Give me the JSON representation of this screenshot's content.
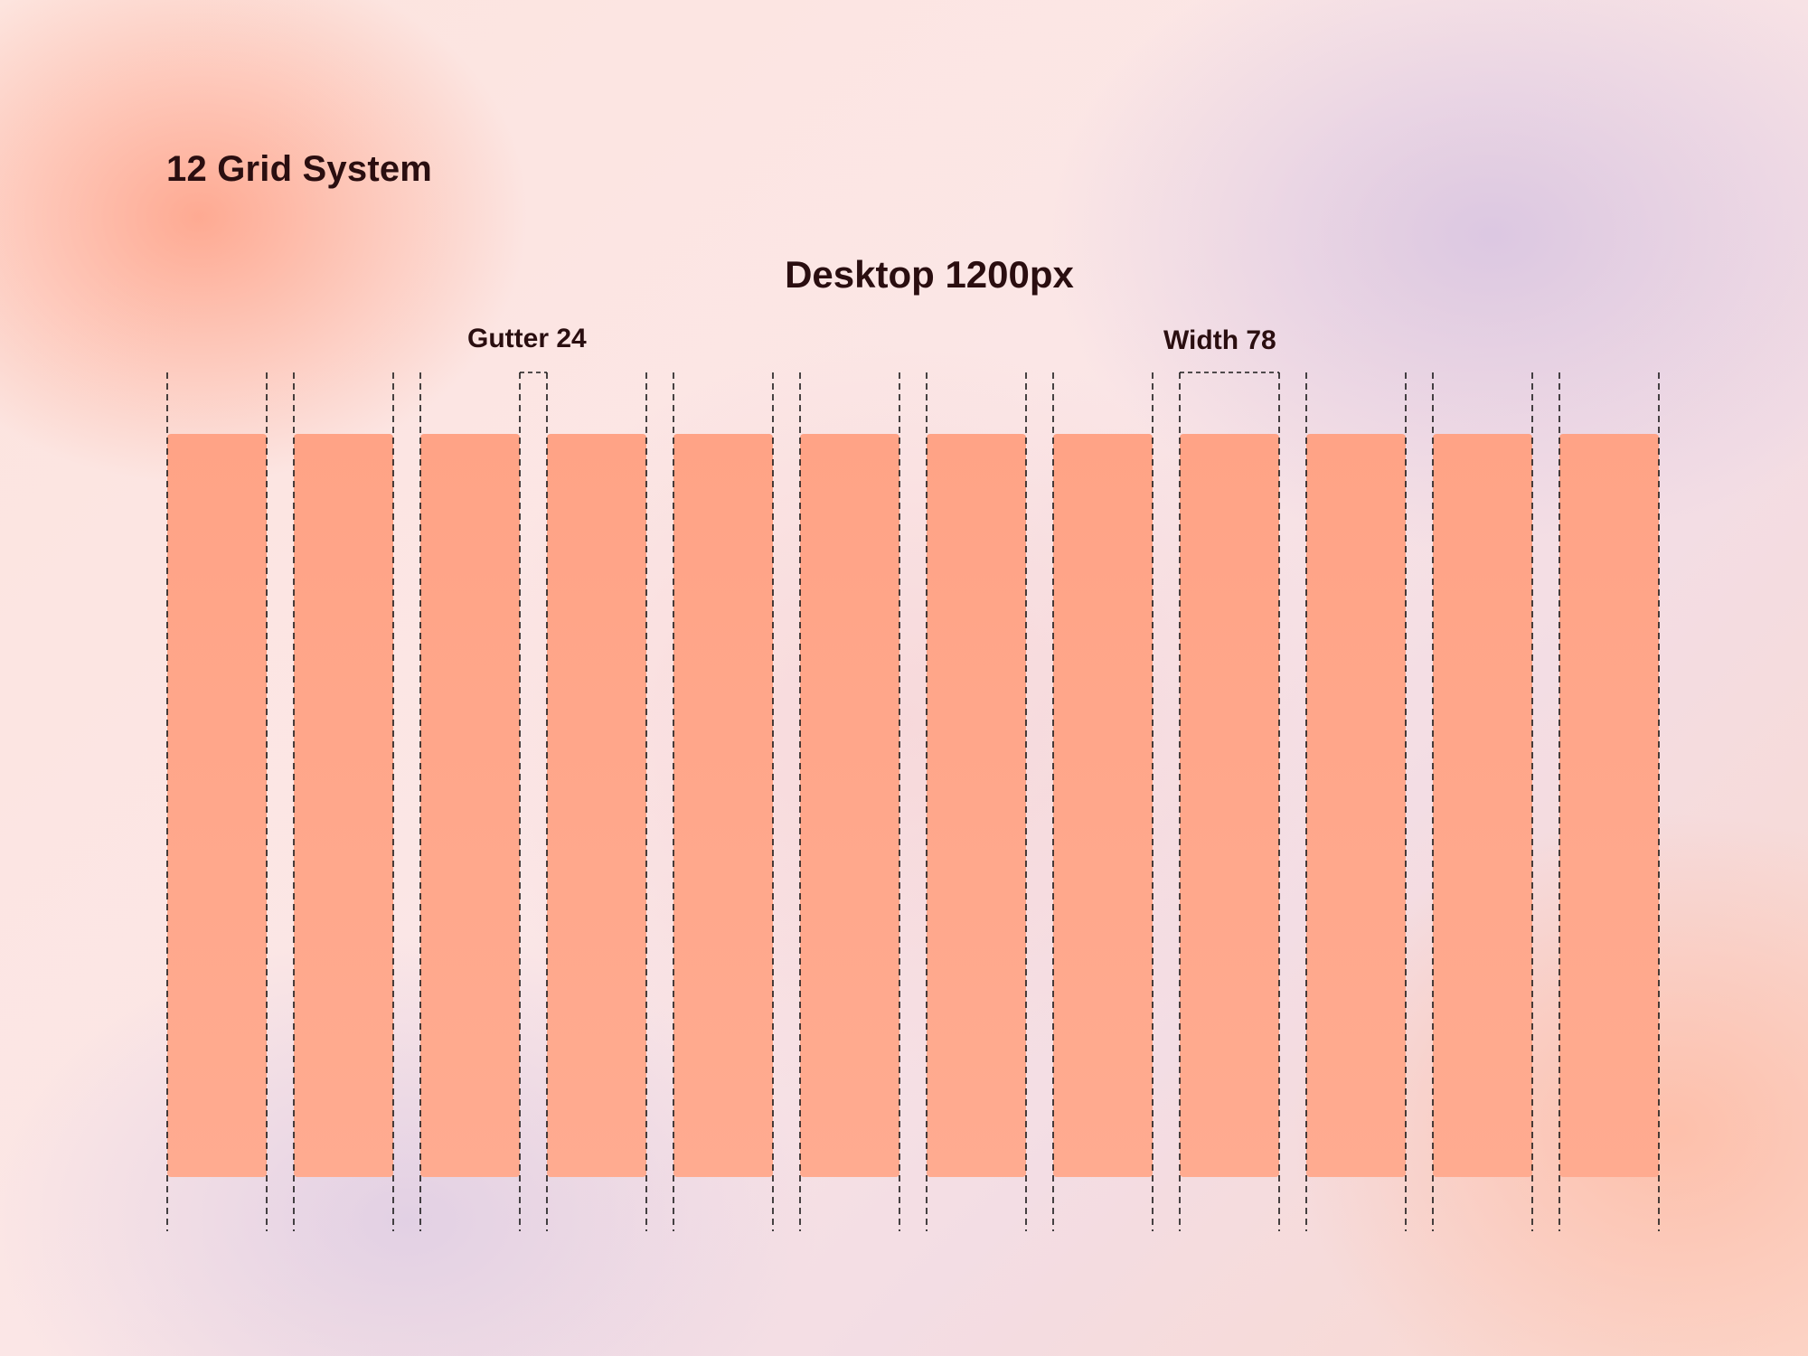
{
  "title": "12 Grid System",
  "subtitle": "Desktop 1200px",
  "annotations": {
    "gutter": "Gutter 24",
    "width": "Width 78"
  },
  "grid": {
    "columns": 12,
    "column_width": 78,
    "gutter": 24,
    "container_width": 1200
  },
  "colors": {
    "column_top": "#ffa386",
    "column_bottom": "#ffab90",
    "guide_line": "#1a1a1a",
    "text": "#2a0e10"
  }
}
